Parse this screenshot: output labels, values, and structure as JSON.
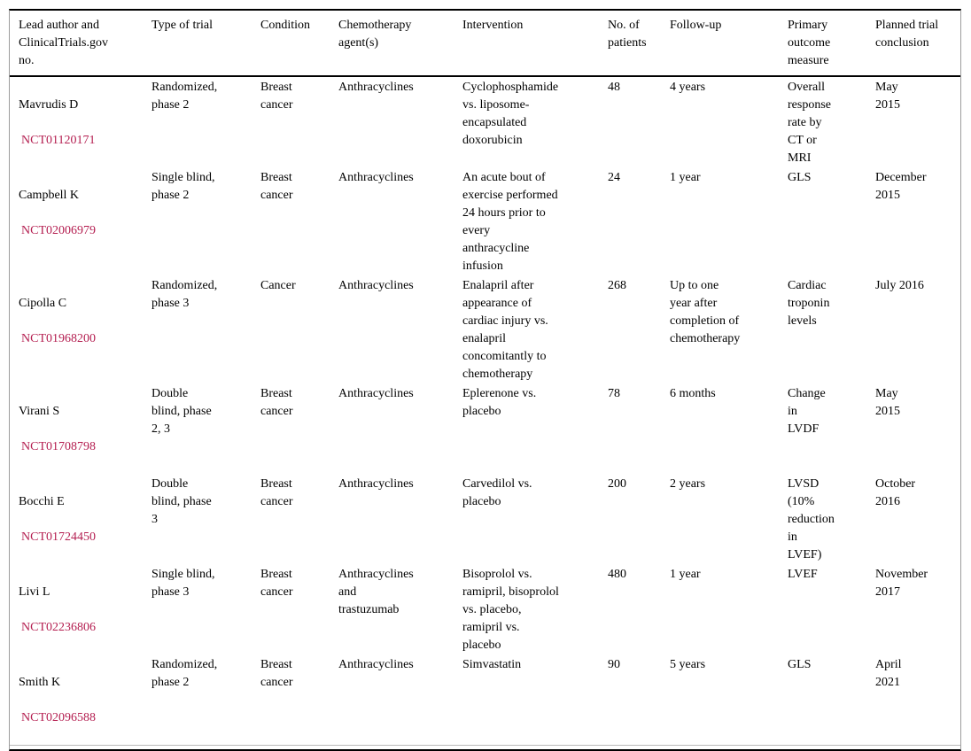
{
  "theme": {
    "link_color": "#b41e50",
    "text_color": "#000000",
    "rule_color": "#000000",
    "side_border_color": "#9c9c9c"
  },
  "table": {
    "columns": [
      "Lead author and\nClinicalTrials.gov\nno.",
      "Type of trial",
      "Condition",
      "Chemotherapy\nagent(s)",
      "Intervention",
      "No. of\npatients",
      "Follow-up",
      "Primary\noutcome\nmeasure",
      "Planned trial\nconclusion"
    ],
    "rows": [
      {
        "author": "Mavrudis D",
        "nct": "NCT01120171",
        "type_of_trial": "Randomized,\nphase 2",
        "condition": "Breast\ncancer",
        "chemo_agents": "Anthracyclines",
        "intervention": "Cyclophosphamide\nvs. liposome-\nencapsulated\ndoxorubicin",
        "no_of_patients": "48",
        "follow_up": "4 years",
        "primary_outcome": "Overall\nresponse\nrate by\nCT or\nMRI",
        "planned_conclusion": "May\n2015"
      },
      {
        "author": "Campbell K",
        "nct": "NCT02006979",
        "type_of_trial": "Single blind,\nphase 2",
        "condition": "Breast\ncancer",
        "chemo_agents": "Anthracyclines",
        "intervention": "An acute bout of\nexercise performed\n24 hours prior to\nevery\nanthracycline\ninfusion",
        "no_of_patients": "24",
        "follow_up": "1 year",
        "primary_outcome": "GLS",
        "planned_conclusion": "December\n2015"
      },
      {
        "author": "Cipolla C",
        "nct": "NCT01968200",
        "type_of_trial": "Randomized,\nphase 3",
        "condition": "Cancer",
        "chemo_agents": "Anthracyclines",
        "intervention": "Enalapril after\nappearance of\ncardiac injury vs.\nenalapril\nconcomitantly to\nchemotherapy",
        "no_of_patients": "268",
        "follow_up": "Up to one\nyear after\ncompletion of\nchemotherapy",
        "primary_outcome": "Cardiac\ntroponin\nlevels",
        "planned_conclusion": "July 2016"
      },
      {
        "author": "Virani S",
        "nct": "NCT01708798",
        "type_of_trial": "Double\nblind, phase\n2, 3",
        "condition": "Breast\ncancer",
        "chemo_agents": "Anthracyclines",
        "intervention": "Eplerenone vs.\nplacebo",
        "no_of_patients": "78",
        "follow_up": "6 months",
        "primary_outcome": "Change\nin\nLVDF",
        "planned_conclusion": "May\n2015"
      },
      {
        "author": "Bocchi E",
        "nct": "NCT01724450",
        "type_of_trial": "Double\nblind, phase\n3",
        "condition": "Breast\ncancer",
        "chemo_agents": "Anthracyclines",
        "intervention": "Carvedilol vs.\nplacebo",
        "no_of_patients": "200",
        "follow_up": "2 years",
        "primary_outcome": "LVSD\n(10%\nreduction\nin\nLVEF)",
        "planned_conclusion": "October\n2016"
      },
      {
        "author": "Livi L",
        "nct": "NCT02236806",
        "type_of_trial": "Single blind,\nphase 3",
        "condition": "Breast\ncancer",
        "chemo_agents": "Anthracyclines\nand\ntrastuzumab",
        "intervention": "Bisoprolol vs.\nramipril, bisoprolol\nvs. placebo,\nramipril vs.\nplacebo",
        "no_of_patients": "480",
        "follow_up": "1 year",
        "primary_outcome": "LVEF",
        "planned_conclusion": "November\n2017"
      },
      {
        "author": "Smith K",
        "nct": "NCT02096588",
        "type_of_trial": "Randomized,\nphase 2",
        "condition": "Breast\ncancer",
        "chemo_agents": "Anthracyclines",
        "intervention": "Simvastatin",
        "no_of_patients": "90",
        "follow_up": "5 years",
        "primary_outcome": "GLS",
        "planned_conclusion": "April\n2021"
      }
    ]
  }
}
